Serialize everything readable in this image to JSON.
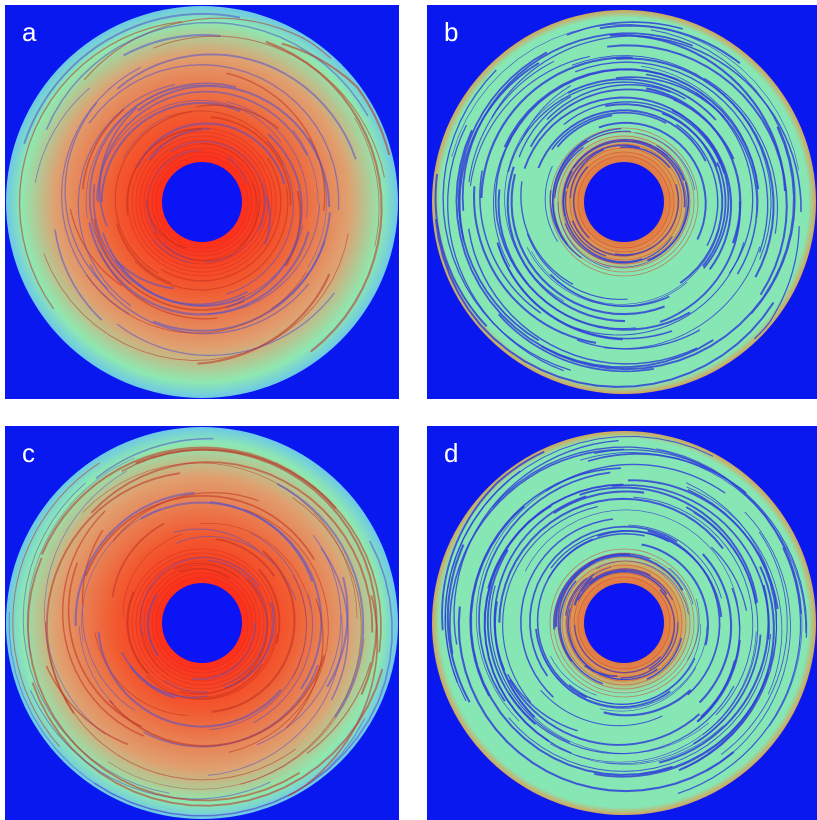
{
  "panels": [
    {
      "label": "a",
      "style": "warm"
    },
    {
      "label": "b",
      "style": "cool"
    },
    {
      "label": "c",
      "style": "warm"
    },
    {
      "label": "d",
      "style": "cool"
    }
  ],
  "colors": {
    "background": "#0a18f0",
    "hole": "#0a14f4",
    "warm_outer": "#8ee8b0",
    "warm_mid": "#e0a070",
    "warm_core": "#f25a30",
    "warm_hot": "#ff2a18",
    "cool_fill": "#86e6b4",
    "cool_rim": "#d4a45c",
    "cool_inner": "#e86a3a",
    "contour": "#3040d8"
  }
}
